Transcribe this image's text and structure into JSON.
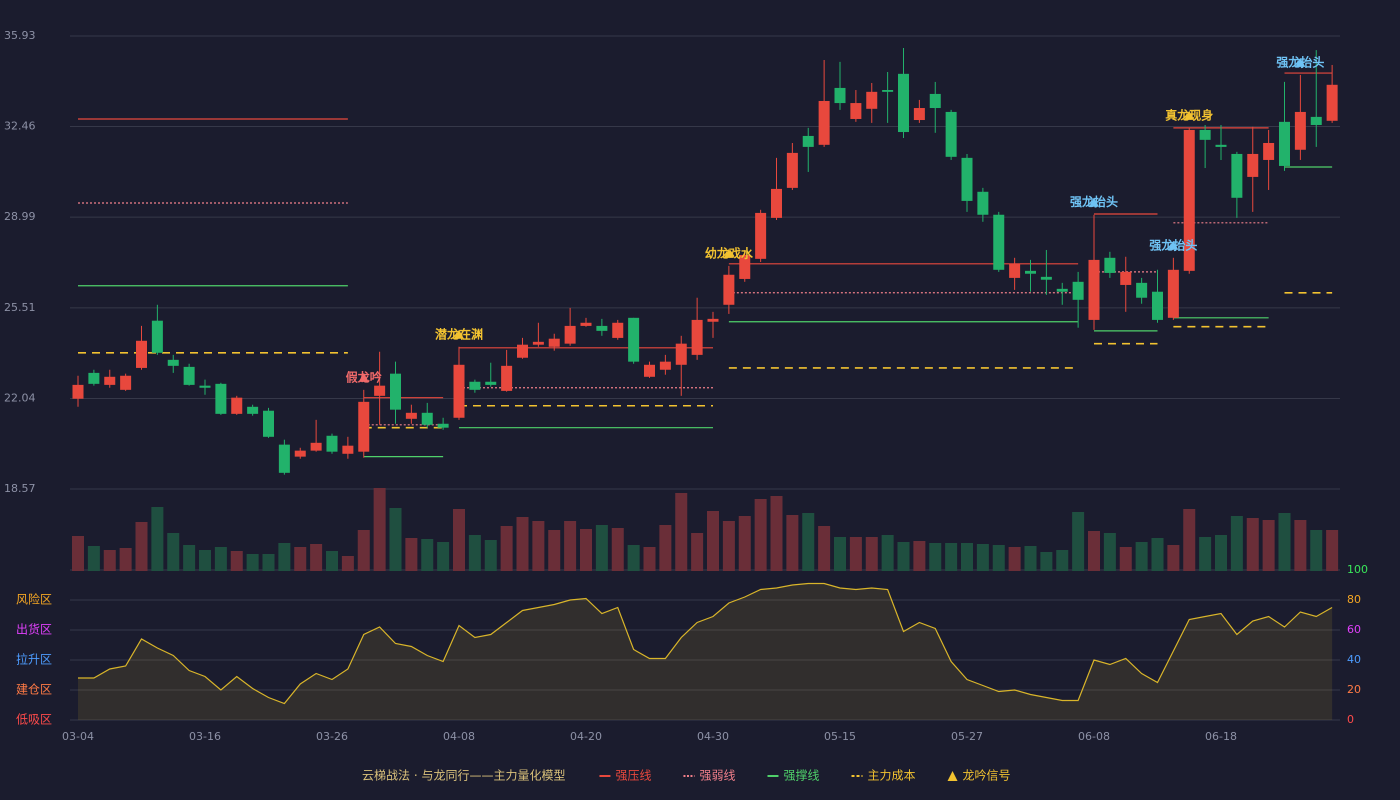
{
  "chart_data": {
    "type": "candlestick",
    "categories": [
      "03-04",
      null,
      null,
      null,
      null,
      null,
      null,
      null,
      "03-16",
      null,
      null,
      null,
      null,
      null,
      null,
      null,
      "03-26",
      null,
      null,
      null,
      null,
      null,
      null,
      null,
      "04-08",
      null,
      null,
      null,
      null,
      null,
      null,
      null,
      "04-20",
      null,
      null,
      null,
      null,
      null,
      null,
      null,
      "04-30",
      null,
      null,
      null,
      null,
      null,
      null,
      null,
      "05-15",
      null,
      null,
      null,
      null,
      null,
      null,
      null,
      "05-27",
      null,
      null,
      null,
      null,
      null,
      null,
      null,
      "06-08",
      null,
      null,
      null,
      null,
      null,
      null,
      null,
      "06-18",
      null,
      null,
      null,
      null,
      null,
      null,
      null
    ],
    "ylim": [
      18.57,
      35.93
    ],
    "yticks": [
      18.57,
      22.04,
      25.51,
      28.99,
      32.46,
      35.93
    ],
    "grid": true,
    "up_color": "#e8483d",
    "down_color": "#22b26b",
    "open": [
      22.03,
      23.02,
      22.56,
      22.37,
      23.21,
      25.02,
      23.52,
      23.25,
      22.53,
      22.6,
      21.45,
      21.72,
      21.57,
      20.27,
      19.81,
      20.04,
      20.61,
      19.92,
      20.0,
      22.14,
      22.99,
      21.26,
      21.49,
      21.07,
      21.3,
      22.68,
      22.68,
      22.33,
      23.6,
      24.1,
      24.02,
      24.14,
      24.82,
      24.82,
      24.36,
      25.13,
      22.87,
      23.14,
      23.33,
      23.71,
      24.98,
      25.63,
      26.62,
      27.39,
      28.96,
      30.11,
      32.1,
      31.76,
      33.94,
      32.75,
      33.14,
      33.86,
      34.48,
      32.71,
      33.71,
      33.02,
      31.26,
      29.96,
      29.08,
      26.66,
      26.93,
      26.7,
      26.24,
      26.51,
      25.05,
      27.43,
      26.39,
      26.47,
      26.13,
      25.13,
      26.93,
      32.33,
      31.76,
      31.41,
      30.53,
      31.18,
      32.64,
      31.57,
      32.83,
      32.68
    ],
    "high": [
      22.91,
      23.14,
      23.14,
      22.99,
      24.82,
      25.63,
      23.71,
      23.37,
      22.76,
      22.64,
      22.14,
      21.8,
      21.68,
      20.46,
      20.15,
      21.22,
      20.69,
      20.57,
      22.37,
      23.83,
      23.45,
      21.8,
      21.87,
      21.3,
      24.02,
      22.76,
      23.41,
      23.9,
      24.36,
      24.94,
      24.52,
      25.51,
      25.13,
      25.09,
      25.05,
      25.13,
      23.45,
      23.71,
      24.44,
      25.9,
      25.36,
      27.12,
      27.73,
      29.27,
      31.26,
      31.83,
      32.41,
      35.01,
      34.94,
      33.86,
      34.13,
      34.55,
      35.47,
      33.48,
      34.17,
      33.1,
      31.41,
      30.11,
      29.19,
      27.43,
      27.35,
      27.73,
      26.47,
      26.89,
      29.08,
      27.66,
      27.47,
      26.66,
      26.97,
      27.43,
      32.41,
      32.52,
      32.52,
      31.49,
      32.45,
      32.33,
      34.17,
      34.44,
      35.39,
      34.82
    ],
    "low": [
      21.72,
      22.53,
      22.45,
      22.33,
      23.14,
      23.71,
      23.02,
      22.53,
      22.18,
      21.41,
      21.41,
      21.38,
      20.53,
      19.12,
      19.73,
      20.0,
      19.92,
      19.73,
      19.77,
      21.03,
      21.07,
      21.07,
      20.92,
      20.84,
      21.22,
      22.26,
      22.49,
      22.3,
      23.56,
      24.02,
      23.87,
      24.06,
      24.79,
      24.44,
      24.29,
      23.37,
      22.83,
      22.95,
      22.14,
      23.52,
      24.36,
      25.28,
      26.51,
      27.27,
      28.88,
      30.03,
      30.72,
      31.68,
      33.1,
      32.64,
      32.6,
      32.6,
      32.02,
      32.6,
      32.22,
      31.18,
      29.19,
      28.81,
      26.89,
      26.2,
      26.13,
      26.01,
      25.63,
      24.75,
      24.67,
      26.66,
      25.36,
      25.67,
      24.94,
      25.05,
      26.82,
      30.87,
      31.18,
      28.96,
      29.19,
      30.03,
      30.76,
      31.18,
      31.68,
      32.6
    ],
    "close": [
      22.56,
      22.6,
      22.87,
      22.91,
      24.25,
      23.79,
      23.29,
      22.56,
      22.45,
      21.45,
      22.07,
      21.45,
      20.57,
      19.19,
      20.04,
      20.34,
      20.0,
      20.23,
      21.91,
      22.53,
      21.61,
      21.49,
      21.03,
      20.92,
      23.33,
      22.37,
      22.56,
      23.29,
      24.1,
      24.21,
      24.33,
      24.82,
      24.94,
      24.63,
      24.94,
      23.45,
      23.33,
      23.45,
      24.14,
      25.05,
      25.09,
      26.78,
      27.54,
      29.15,
      30.07,
      31.45,
      31.68,
      33.44,
      33.36,
      33.36,
      33.79,
      33.79,
      32.25,
      33.17,
      33.17,
      31.3,
      29.61,
      29.08,
      26.97,
      27.2,
      26.82,
      26.59,
      26.13,
      25.82,
      27.35,
      26.85,
      26.89,
      25.9,
      25.05,
      26.97,
      32.33,
      31.95,
      31.68,
      29.73,
      31.41,
      31.83,
      30.95,
      33.02,
      32.52,
      34.06
    ],
    "volume": [
      35,
      25,
      21,
      23,
      49,
      64,
      38,
      26,
      21,
      24,
      20,
      17,
      17,
      28,
      24,
      27,
      20,
      15,
      41,
      83,
      63,
      33,
      32,
      29,
      62,
      36,
      31,
      45,
      54,
      50,
      41,
      50,
      42,
      46,
      43,
      26,
      24,
      46,
      78,
      38,
      60,
      50,
      55,
      72,
      75,
      56,
      58,
      45,
      34,
      34,
      34,
      36,
      29,
      30,
      28,
      28,
      28,
      27,
      26,
      24,
      25,
      19,
      21,
      59,
      40,
      38,
      24,
      29,
      33,
      26,
      62,
      34,
      36,
      55,
      53,
      51,
      58,
      51,
      41,
      41
    ],
    "volume_up_color": "#6a2e38",
    "volume_down_color": "#1f4f40",
    "levels": [
      {
        "name": "强压线",
        "color": "#e8483d",
        "dash": "solid",
        "values": [
          32.75,
          32.75,
          32.75,
          32.75,
          32.75,
          32.75,
          32.75,
          32.75,
          32.75,
          32.75,
          32.75,
          32.75,
          32.75,
          32.75,
          32.75,
          32.75,
          32.75,
          32.75,
          22.07,
          22.07,
          22.07,
          22.07,
          22.07,
          22.07,
          23.98,
          23.98,
          23.98,
          23.98,
          23.98,
          23.98,
          23.98,
          23.98,
          23.98,
          23.98,
          23.98,
          23.98,
          23.98,
          23.98,
          23.98,
          23.98,
          23.98,
          27.2,
          27.2,
          27.2,
          27.2,
          27.2,
          27.2,
          27.2,
          27.2,
          27.2,
          27.2,
          27.2,
          27.2,
          27.2,
          27.2,
          27.2,
          27.2,
          27.2,
          27.2,
          27.2,
          27.2,
          27.2,
          27.2,
          27.2,
          29.11,
          29.11,
          29.11,
          29.11,
          29.11,
          32.41,
          32.41,
          32.41,
          32.41,
          32.41,
          32.41,
          32.41,
          34.51,
          34.51,
          34.51,
          34.51
        ]
      },
      {
        "name": "强弱线",
        "color": "#f07f8a",
        "dash": "dotted",
        "values": [
          29.53,
          29.53,
          29.53,
          29.53,
          29.53,
          29.53,
          29.53,
          29.53,
          29.53,
          29.53,
          29.53,
          29.53,
          29.53,
          29.53,
          29.53,
          29.53,
          29.53,
          29.53,
          21.03,
          21.03,
          21.03,
          21.03,
          21.03,
          21.03,
          22.45,
          22.45,
          22.45,
          22.45,
          22.45,
          22.45,
          22.45,
          22.45,
          22.45,
          22.45,
          22.45,
          22.45,
          22.45,
          22.45,
          22.45,
          22.45,
          22.45,
          26.09,
          26.09,
          26.09,
          26.09,
          26.09,
          26.09,
          26.09,
          26.09,
          26.09,
          26.09,
          26.09,
          26.09,
          26.09,
          26.09,
          26.09,
          26.09,
          26.09,
          26.09,
          26.09,
          26.09,
          26.09,
          26.09,
          26.09,
          26.89,
          26.89,
          26.89,
          26.89,
          26.89,
          28.77,
          28.77,
          28.77,
          28.77,
          28.77,
          28.77,
          28.77,
          null,
          null,
          null,
          null
        ]
      },
      {
        "name": "强撑线",
        "color": "#4fd06a",
        "dash": "solid",
        "values": [
          26.36,
          26.36,
          26.36,
          26.36,
          26.36,
          26.36,
          26.36,
          26.36,
          26.36,
          26.36,
          26.36,
          26.36,
          26.36,
          26.36,
          26.36,
          26.36,
          26.36,
          26.36,
          19.81,
          19.81,
          19.81,
          19.81,
          19.81,
          19.81,
          20.92,
          20.92,
          20.92,
          20.92,
          20.92,
          20.92,
          20.92,
          20.92,
          20.92,
          20.92,
          20.92,
          20.92,
          20.92,
          20.92,
          20.92,
          20.92,
          20.92,
          24.98,
          24.98,
          24.98,
          24.98,
          24.98,
          24.98,
          24.98,
          24.98,
          24.98,
          24.98,
          24.98,
          24.98,
          24.98,
          24.98,
          24.98,
          24.98,
          24.98,
          24.98,
          24.98,
          24.98,
          24.98,
          24.98,
          24.98,
          24.63,
          24.63,
          24.63,
          24.63,
          24.63,
          25.13,
          25.13,
          25.13,
          25.13,
          25.13,
          25.13,
          25.13,
          30.91,
          30.91,
          30.91,
          30.91
        ]
      },
      {
        "name": "主力成本",
        "color": "#f2c230",
        "dash": "dashed",
        "values": [
          23.79,
          23.79,
          23.79,
          23.79,
          23.79,
          23.79,
          23.79,
          23.79,
          23.79,
          23.79,
          23.79,
          23.79,
          23.79,
          23.79,
          23.79,
          23.79,
          23.79,
          23.79,
          20.92,
          20.92,
          20.92,
          20.92,
          20.92,
          20.92,
          21.76,
          21.76,
          21.76,
          21.76,
          21.76,
          21.76,
          21.76,
          21.76,
          21.76,
          21.76,
          21.76,
          21.76,
          21.76,
          21.76,
          21.76,
          21.76,
          21.76,
          23.21,
          23.21,
          23.21,
          23.21,
          23.21,
          23.21,
          23.21,
          23.21,
          23.21,
          23.21,
          23.21,
          23.21,
          23.21,
          23.21,
          23.21,
          23.21,
          23.21,
          23.21,
          23.21,
          23.21,
          23.21,
          23.21,
          23.21,
          24.14,
          24.14,
          24.14,
          24.14,
          24.14,
          24.79,
          24.79,
          24.79,
          24.79,
          24.79,
          24.79,
          24.79,
          26.09,
          26.09,
          26.09,
          26.09
        ]
      }
    ],
    "signal_name": "龙吟信号",
    "signal_color": "#f2c230",
    "signals": [
      {
        "index": 18,
        "label": "假龙吟",
        "color": "#f06a6a"
      },
      {
        "index": 24,
        "label": "潜龙在渊",
        "color": "#f2c230"
      },
      {
        "index": 41,
        "label": "幼龙戏水",
        "color": "#f2c230"
      },
      {
        "index": 64,
        "label": "强龙抬头",
        "color": "#6fc3f5"
      },
      {
        "index": 69,
        "label": "强龙抬头",
        "color": "#6fc3f5"
      },
      {
        "index": 70,
        "label": "真龙现身",
        "color": "#f2c230"
      },
      {
        "index": 77,
        "label": "强龙抬头",
        "color": "#6fc3f5"
      }
    ],
    "oscillator": {
      "values": [
        28,
        28,
        34,
        36,
        54,
        48,
        43,
        33,
        29,
        20,
        29,
        21,
        15,
        11,
        24,
        31,
        27,
        34,
        57,
        62,
        51,
        49,
        43,
        39,
        63,
        55,
        57,
        65,
        73,
        75,
        77,
        80,
        81,
        71,
        75,
        47,
        41,
        41,
        55,
        65,
        69,
        78,
        82,
        87,
        88,
        90,
        91,
        91,
        88,
        87,
        88,
        87,
        59,
        65,
        61,
        39,
        27,
        23,
        19,
        20,
        17,
        15,
        13,
        13,
        40,
        37,
        41,
        31,
        25,
        46,
        67,
        69,
        71,
        57,
        66,
        69,
        62,
        72,
        69,
        75
      ],
      "color": "#d9b52a",
      "ylim": [
        0,
        100
      ],
      "yticks": [
        0,
        20,
        40,
        60,
        80,
        100
      ],
      "ytick_colors": [
        "#ff4b4b",
        "#ff7a45",
        "#4d9cff",
        "#e040fb",
        "#f5a623",
        "#39e65a"
      ],
      "zones": [
        {
          "value": 80,
          "label": "风险区"
        },
        {
          "value": 60,
          "label": "出货区"
        },
        {
          "value": 40,
          "label": "拉升区"
        },
        {
          "value": 20,
          "label": "建仓区"
        },
        {
          "value": 0,
          "label": "低吸区"
        }
      ],
      "zone_colors": [
        "#f5a623",
        "#e040fb",
        "#4d9cff",
        "#ff7a45",
        "#ff4b4b"
      ]
    },
    "legend_title": "云梯战法 · 与龙同行——主力量化模型"
  }
}
